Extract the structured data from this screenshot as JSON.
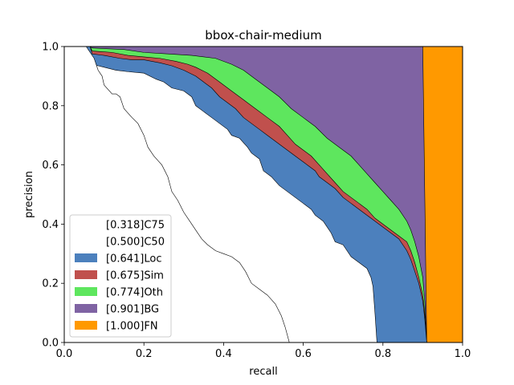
{
  "chart_data": {
    "type": "area",
    "title": "bbox-chair-medium",
    "xlabel": "recall",
    "ylabel": "precision",
    "xlim": [
      0,
      1
    ],
    "ylim": [
      0,
      1
    ],
    "x_ticks": [
      "0.0",
      "0.2",
      "0.4",
      "0.6",
      "0.8",
      "1.0"
    ],
    "y_ticks": [
      "0.0",
      "0.2",
      "0.4",
      "0.6",
      "0.8",
      "1.0"
    ],
    "grid": false,
    "legend_position": "lower-left",
    "series": [
      {
        "name": "[0.318]C75",
        "color": "#ffffff",
        "points": [
          [
            0.0,
            1.0
          ],
          [
            0.055,
            1.0
          ],
          [
            0.075,
            0.96
          ],
          [
            0.085,
            0.92
          ],
          [
            0.095,
            0.9
          ],
          [
            0.1,
            0.87
          ],
          [
            0.12,
            0.84
          ],
          [
            0.13,
            0.84
          ],
          [
            0.14,
            0.83
          ],
          [
            0.15,
            0.79
          ],
          [
            0.17,
            0.76
          ],
          [
            0.185,
            0.74
          ],
          [
            0.2,
            0.7
          ],
          [
            0.21,
            0.66
          ],
          [
            0.225,
            0.63
          ],
          [
            0.245,
            0.6
          ],
          [
            0.26,
            0.56
          ],
          [
            0.27,
            0.51
          ],
          [
            0.285,
            0.48
          ],
          [
            0.3,
            0.44
          ],
          [
            0.315,
            0.41
          ],
          [
            0.33,
            0.38
          ],
          [
            0.345,
            0.35
          ],
          [
            0.36,
            0.33
          ],
          [
            0.38,
            0.31
          ],
          [
            0.4,
            0.3
          ],
          [
            0.42,
            0.29
          ],
          [
            0.44,
            0.27
          ],
          [
            0.455,
            0.24
          ],
          [
            0.47,
            0.2
          ],
          [
            0.49,
            0.18
          ],
          [
            0.51,
            0.16
          ],
          [
            0.53,
            0.13
          ],
          [
            0.545,
            0.09
          ],
          [
            0.555,
            0.05
          ],
          [
            0.565,
            0.0
          ]
        ]
      },
      {
        "name": "[0.500]C50",
        "color": "#ffffff",
        "points": [
          [
            0.0,
            1.0
          ],
          [
            0.045,
            1.0
          ],
          [
            0.06,
            0.98
          ],
          [
            0.065,
            0.96
          ],
          [
            0.07,
            0.94
          ],
          [
            0.1,
            0.93
          ],
          [
            0.13,
            0.92
          ],
          [
            0.16,
            0.915
          ],
          [
            0.2,
            0.91
          ],
          [
            0.23,
            0.89
          ],
          [
            0.25,
            0.88
          ],
          [
            0.27,
            0.86
          ],
          [
            0.3,
            0.85
          ],
          [
            0.32,
            0.83
          ],
          [
            0.33,
            0.8
          ],
          [
            0.35,
            0.78
          ],
          [
            0.37,
            0.76
          ],
          [
            0.39,
            0.74
          ],
          [
            0.41,
            0.72
          ],
          [
            0.42,
            0.7
          ],
          [
            0.44,
            0.69
          ],
          [
            0.46,
            0.66
          ],
          [
            0.47,
            0.64
          ],
          [
            0.49,
            0.62
          ],
          [
            0.5,
            0.58
          ],
          [
            0.52,
            0.56
          ],
          [
            0.54,
            0.53
          ],
          [
            0.56,
            0.51
          ],
          [
            0.58,
            0.49
          ],
          [
            0.6,
            0.47
          ],
          [
            0.62,
            0.45
          ],
          [
            0.63,
            0.43
          ],
          [
            0.65,
            0.41
          ],
          [
            0.66,
            0.39
          ],
          [
            0.67,
            0.37
          ],
          [
            0.68,
            0.34
          ],
          [
            0.7,
            0.33
          ],
          [
            0.71,
            0.31
          ],
          [
            0.72,
            0.29
          ],
          [
            0.74,
            0.27
          ],
          [
            0.76,
            0.25
          ],
          [
            0.77,
            0.22
          ],
          [
            0.775,
            0.19
          ],
          [
            0.78,
            0.1
          ],
          [
            0.785,
            0.0
          ]
        ]
      },
      {
        "name": "[0.641]Loc",
        "color": "#4c80bd",
        "points": [
          [
            0.0,
            1.0
          ],
          [
            0.065,
            1.0
          ],
          [
            0.07,
            0.975
          ],
          [
            0.1,
            0.97
          ],
          [
            0.14,
            0.96
          ],
          [
            0.17,
            0.955
          ],
          [
            0.2,
            0.955
          ],
          [
            0.24,
            0.945
          ],
          [
            0.27,
            0.935
          ],
          [
            0.3,
            0.92
          ],
          [
            0.33,
            0.9
          ],
          [
            0.35,
            0.88
          ],
          [
            0.37,
            0.86
          ],
          [
            0.39,
            0.83
          ],
          [
            0.41,
            0.81
          ],
          [
            0.43,
            0.79
          ],
          [
            0.45,
            0.76
          ],
          [
            0.47,
            0.74
          ],
          [
            0.49,
            0.72
          ],
          [
            0.51,
            0.7
          ],
          [
            0.53,
            0.68
          ],
          [
            0.55,
            0.66
          ],
          [
            0.57,
            0.64
          ],
          [
            0.59,
            0.62
          ],
          [
            0.61,
            0.6
          ],
          [
            0.63,
            0.58
          ],
          [
            0.64,
            0.56
          ],
          [
            0.66,
            0.54
          ],
          [
            0.68,
            0.52
          ],
          [
            0.7,
            0.49
          ],
          [
            0.72,
            0.47
          ],
          [
            0.74,
            0.45
          ],
          [
            0.76,
            0.43
          ],
          [
            0.78,
            0.41
          ],
          [
            0.8,
            0.39
          ],
          [
            0.82,
            0.37
          ],
          [
            0.84,
            0.35
          ],
          [
            0.85,
            0.33
          ],
          [
            0.86,
            0.31
          ],
          [
            0.87,
            0.28
          ],
          [
            0.88,
            0.24
          ],
          [
            0.89,
            0.2
          ],
          [
            0.9,
            0.14
          ],
          [
            0.905,
            0.08
          ],
          [
            0.91,
            0.0
          ]
        ]
      },
      {
        "name": "[0.675]Sim",
        "color": "#c0504d",
        "points": [
          [
            0.0,
            1.0
          ],
          [
            0.065,
            1.0
          ],
          [
            0.07,
            0.985
          ],
          [
            0.12,
            0.98
          ],
          [
            0.16,
            0.97
          ],
          [
            0.2,
            0.965
          ],
          [
            0.24,
            0.96
          ],
          [
            0.28,
            0.95
          ],
          [
            0.31,
            0.94
          ],
          [
            0.33,
            0.93
          ],
          [
            0.36,
            0.91
          ],
          [
            0.39,
            0.88
          ],
          [
            0.42,
            0.85
          ],
          [
            0.45,
            0.82
          ],
          [
            0.48,
            0.79
          ],
          [
            0.51,
            0.76
          ],
          [
            0.54,
            0.73
          ],
          [
            0.56,
            0.7
          ],
          [
            0.58,
            0.67
          ],
          [
            0.6,
            0.65
          ],
          [
            0.62,
            0.63
          ],
          [
            0.64,
            0.6
          ],
          [
            0.66,
            0.57
          ],
          [
            0.68,
            0.54
          ],
          [
            0.7,
            0.51
          ],
          [
            0.72,
            0.49
          ],
          [
            0.74,
            0.47
          ],
          [
            0.76,
            0.45
          ],
          [
            0.78,
            0.42
          ],
          [
            0.8,
            0.4
          ],
          [
            0.82,
            0.38
          ],
          [
            0.84,
            0.36
          ],
          [
            0.86,
            0.34
          ],
          [
            0.87,
            0.31
          ],
          [
            0.88,
            0.27
          ],
          [
            0.89,
            0.22
          ],
          [
            0.9,
            0.16
          ],
          [
            0.905,
            0.1
          ],
          [
            0.91,
            0.0
          ]
        ]
      },
      {
        "name": "[0.774]Oth",
        "color": "#5ee65e",
        "points": [
          [
            0.0,
            1.0
          ],
          [
            0.065,
            1.0
          ],
          [
            0.07,
            0.995
          ],
          [
            0.15,
            0.99
          ],
          [
            0.2,
            0.98
          ],
          [
            0.26,
            0.975
          ],
          [
            0.32,
            0.97
          ],
          [
            0.38,
            0.96
          ],
          [
            0.42,
            0.94
          ],
          [
            0.45,
            0.92
          ],
          [
            0.48,
            0.89
          ],
          [
            0.51,
            0.86
          ],
          [
            0.54,
            0.83
          ],
          [
            0.57,
            0.79
          ],
          [
            0.6,
            0.76
          ],
          [
            0.63,
            0.73
          ],
          [
            0.66,
            0.69
          ],
          [
            0.69,
            0.66
          ],
          [
            0.72,
            0.63
          ],
          [
            0.74,
            0.6
          ],
          [
            0.76,
            0.57
          ],
          [
            0.78,
            0.54
          ],
          [
            0.8,
            0.51
          ],
          [
            0.82,
            0.48
          ],
          [
            0.84,
            0.45
          ],
          [
            0.86,
            0.41
          ],
          [
            0.87,
            0.38
          ],
          [
            0.88,
            0.34
          ],
          [
            0.89,
            0.29
          ],
          [
            0.9,
            0.22
          ],
          [
            0.905,
            0.14
          ],
          [
            0.91,
            0.0
          ]
        ]
      },
      {
        "name": "[0.901]BG",
        "color": "#7f63a3",
        "points": [
          [
            0.0,
            1.0
          ],
          [
            0.9,
            1.0
          ],
          [
            0.91,
            0.0
          ]
        ]
      },
      {
        "name": "[1.000]FN",
        "color": "#ff9900",
        "points": [
          [
            0.0,
            1.0
          ],
          [
            1.0,
            1.0
          ],
          [
            1.0,
            0.0
          ]
        ]
      }
    ]
  }
}
